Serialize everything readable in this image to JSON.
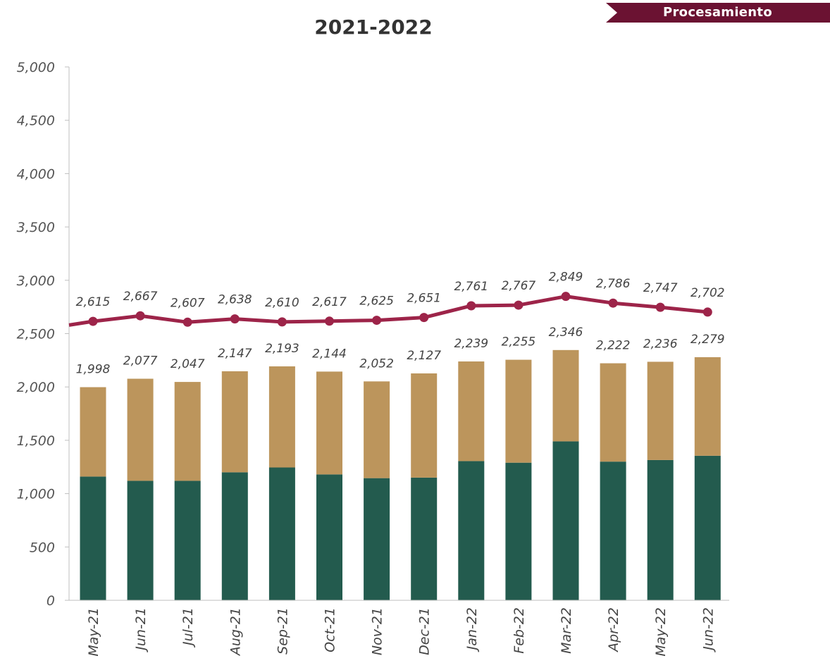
{
  "header": {
    "tag_label": "Procesamiento",
    "title": "2021-2022"
  },
  "colors": {
    "tag_bg": "#6b1232",
    "line": "#9d2449",
    "bar_bottom": "#235b4e",
    "bar_top": "#bc955c",
    "axis": "#bfbfbf",
    "text": "#444444"
  },
  "chart_data": {
    "type": "bar",
    "stacked": true,
    "title": "2021-2022",
    "categories": [
      "May-21",
      "Jun-21",
      "Jul-21",
      "Aug-21",
      "Sep-21",
      "Oct-21",
      "Nov-21",
      "Dec-21",
      "Jan-22",
      "Feb-22",
      "Mar-22",
      "Apr-22",
      "May-22",
      "Jun-22"
    ],
    "series": [
      {
        "kind": "bar",
        "color": "#235b4e",
        "values": [
          1160,
          1120,
          1120,
          1200,
          1245,
          1180,
          1145,
          1150,
          1305,
          1290,
          1490,
          1300,
          1315,
          1355
        ]
      },
      {
        "kind": "bar",
        "color": "#bc955c",
        "values": [
          838,
          957,
          927,
          947,
          948,
          964,
          907,
          977,
          934,
          965,
          856,
          922,
          921,
          924
        ]
      },
      {
        "kind": "line",
        "color": "#9d2449",
        "values": [
          2615,
          2667,
          2607,
          2638,
          2610,
          2617,
          2625,
          2651,
          2761,
          2767,
          2849,
          2786,
          2747,
          2702
        ]
      }
    ],
    "bar_totals": [
      1998,
      2077,
      2047,
      2147,
      2193,
      2144,
      2052,
      2127,
      2239,
      2255,
      2346,
      2222,
      2236,
      2279
    ],
    "bar_total_labels": [
      "1,998",
      "2,077",
      "2,047",
      "2,147",
      "2,193",
      "2,144",
      "2,052",
      "2,127",
      "2,239",
      "2,255",
      "2,346",
      "2,222",
      "2,236",
      "2,279"
    ],
    "line_labels": [
      "2,615",
      "2,667",
      "2,607",
      "2,638",
      "2,610",
      "2,617",
      "2,625",
      "2,651",
      "2,761",
      "2,767",
      "2,849",
      "2,786",
      "2,747",
      "2,702"
    ],
    "line_left_edge_value": 2580,
    "y_ticks": [
      0,
      500,
      1000,
      1500,
      2000,
      2500,
      3000,
      3500,
      4000,
      4500,
      5000
    ],
    "y_tick_labels": [
      "0",
      "500",
      "1,000",
      "1,500",
      "2,000",
      "2,500",
      "3,000",
      "3,500",
      "4,000",
      "4,500",
      "5,000"
    ],
    "ylim": [
      0,
      5000
    ],
    "grid": false
  }
}
